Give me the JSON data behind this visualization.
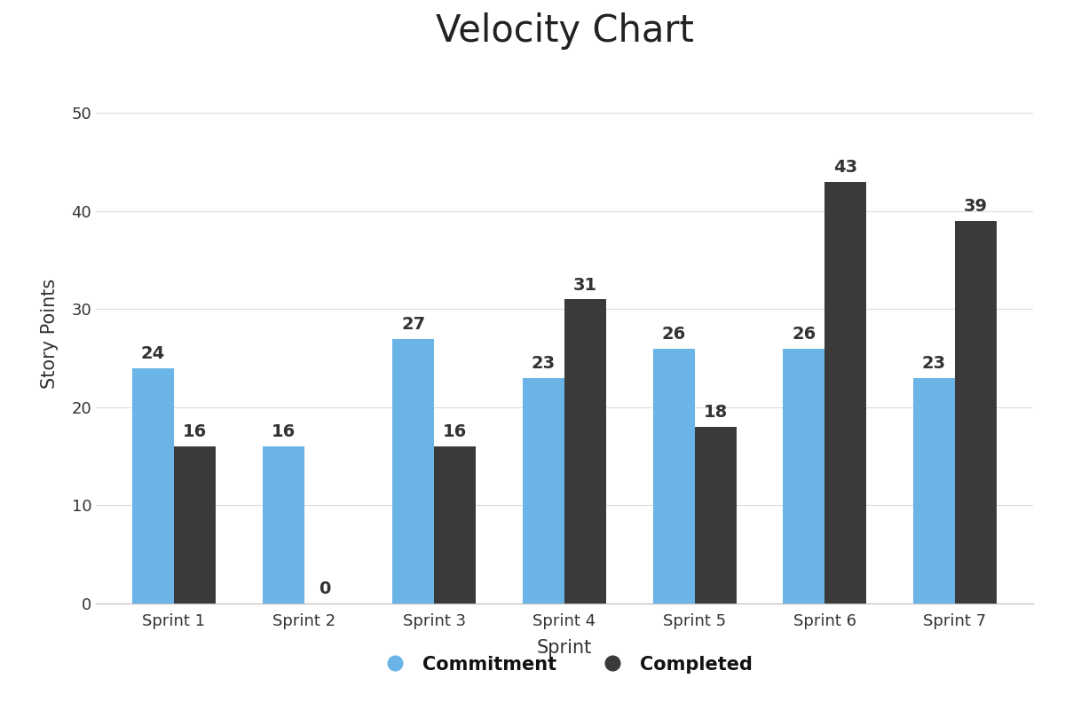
{
  "title": "Velocity Chart",
  "xlabel": "Sprint",
  "ylabel": "Story Points",
  "categories": [
    "Sprint 1",
    "Sprint 2",
    "Sprint 3",
    "Sprint 4",
    "Sprint 5",
    "Sprint 6",
    "Sprint 7"
  ],
  "commitment": [
    24,
    16,
    27,
    23,
    26,
    26,
    23
  ],
  "completed": [
    16,
    0,
    16,
    31,
    18,
    43,
    39
  ],
  "commitment_color": "#6ab4e8",
  "completed_color": "#3a3a3a",
  "ylim": [
    0,
    55
  ],
  "yticks": [
    0,
    10,
    20,
    30,
    40,
    50
  ],
  "bar_width": 0.32,
  "title_fontsize": 30,
  "axis_label_fontsize": 15,
  "tick_fontsize": 13,
  "value_label_fontsize": 14,
  "legend_fontsize": 15,
  "background_color": "#ffffff",
  "grid_color": "#dddddd",
  "text_color": "#333333"
}
